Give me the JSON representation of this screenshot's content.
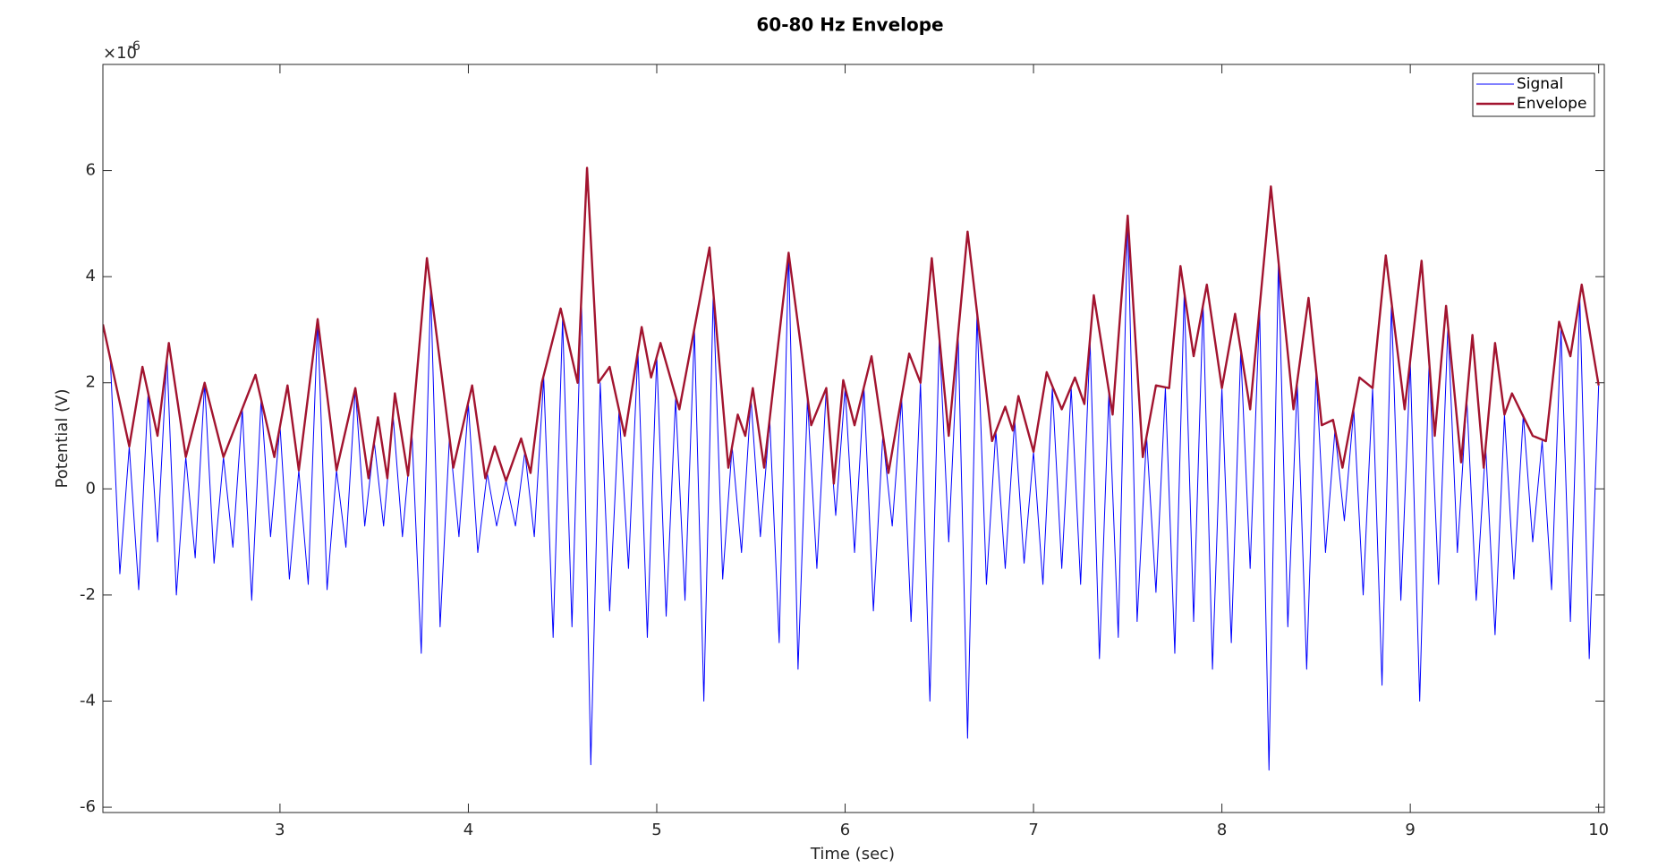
{
  "chart_data": {
    "type": "line",
    "title": "60-80 Hz Envelope",
    "x_label": "Time (sec)",
    "y_label": "Potential (V)",
    "y_multiplier": {
      "base": "×10",
      "exponent": "-6"
    },
    "xlim": [
      2.06,
      10.03
    ],
    "ylim": [
      -6.1,
      8
    ],
    "xticks": [
      3,
      4,
      5,
      6,
      7,
      8,
      9,
      10
    ],
    "yticks": [
      -6,
      -4,
      -2,
      0,
      2,
      4,
      6
    ],
    "legend": "northeast",
    "box": true,
    "series": [
      {
        "name": "Signal",
        "color": "#0000ff",
        "width": 1,
        "x": [
          2.1,
          2.15,
          2.2,
          2.25,
          2.3,
          2.35,
          2.4,
          2.45,
          2.5,
          2.55,
          2.6,
          2.65,
          2.7,
          2.75,
          2.8,
          2.85,
          2.9,
          2.95,
          3,
          3.05,
          3.1,
          3.15,
          3.2,
          3.25,
          3.3,
          3.35,
          3.4,
          3.45,
          3.5,
          3.55,
          3.6,
          3.65,
          3.7,
          3.75,
          3.8,
          3.85,
          3.9,
          3.95,
          4,
          4.05,
          4.1,
          4.15,
          4.2,
          4.25,
          4.3,
          4.35,
          4.4,
          4.45,
          4.5,
          4.55,
          4.6,
          4.65,
          4.7,
          4.75,
          4.8,
          4.85,
          4.9,
          4.95,
          5,
          5.05,
          5.1,
          5.15,
          5.2,
          5.25,
          5.3,
          5.35,
          5.4,
          5.45,
          5.5,
          5.55,
          5.6,
          5.65,
          5.7,
          5.75,
          5.8,
          5.85,
          5.9,
          5.95,
          6,
          6.05,
          6.1,
          6.15,
          6.2,
          6.25,
          6.3,
          6.35,
          6.4,
          6.45,
          6.5,
          6.55,
          6.6,
          6.65,
          6.7,
          6.75,
          6.8,
          6.85,
          6.9,
          6.95,
          7,
          7.05,
          7.1,
          7.15,
          7.2,
          7.25,
          7.3,
          7.35,
          7.4,
          7.45,
          7.5,
          7.55,
          7.6,
          7.65,
          7.7,
          7.75,
          7.8,
          7.85,
          7.9,
          7.95,
          8,
          8.05,
          8.1,
          8.15,
          8.2,
          8.25,
          8.3,
          8.35,
          8.4,
          8.45,
          8.5,
          8.55,
          8.6,
          8.65,
          8.7,
          8.75,
          8.8,
          8.85,
          8.9,
          8.95,
          9,
          9.05,
          9.1,
          9.15,
          9.2,
          9.25,
          9.3,
          9.35,
          9.4,
          9.45,
          9.5,
          9.55,
          9.6,
          9.65,
          9.7,
          9.75,
          9.8,
          9.85,
          9.9,
          9.95,
          10
        ],
        "values": [
          2.4,
          -1.6,
          0.8,
          -1.9,
          1.8,
          -1.0,
          2.5,
          -2.0,
          0.6,
          -1.3,
          2.0,
          -1.4,
          0.6,
          -1.1,
          1.5,
          -2.1,
          1.7,
          -0.9,
          1.2,
          -1.7,
          0.35,
          -1.8,
          3.2,
          -1.9,
          0.35,
          -1.1,
          1.9,
          -0.7,
          0.9,
          -0.7,
          1.4,
          -0.9,
          1.1,
          -3.1,
          3.8,
          -2.6,
          1.0,
          -0.9,
          1.6,
          -1.2,
          0.3,
          -0.7,
          0.15,
          -0.7,
          0.7,
          -0.9,
          2.1,
          -2.8,
          3.2,
          -2.6,
          3.6,
          -5.2,
          2.0,
          -2.3,
          1.5,
          -1.5,
          2.6,
          -2.8,
          2.5,
          -2.4,
          1.7,
          -2.1,
          3.0,
          -4.0,
          3.7,
          -1.7,
          0.8,
          -1.2,
          1.7,
          -0.9,
          1.3,
          -2.9,
          4.45,
          -3.4,
          1.7,
          -1.5,
          1.9,
          -0.5,
          1.9,
          -1.2,
          1.9,
          -2.3,
          1.0,
          -0.7,
          1.7,
          -2.5,
          2.0,
          -4.0,
          2.9,
          -1.0,
          2.9,
          -4.7,
          3.3,
          -1.8,
          1.1,
          -1.5,
          1.3,
          -1.4,
          0.7,
          -1.8,
          1.9,
          -1.5,
          1.9,
          -1.8,
          2.8,
          -3.2,
          1.8,
          -2.8,
          5.15,
          -2.5,
          1.0,
          -1.95,
          1.9,
          -3.1,
          3.7,
          -2.5,
          3.5,
          -3.4,
          1.9,
          -2.9,
          2.6,
          -1.5,
          3.4,
          -5.3,
          4.3,
          -2.6,
          2.0,
          -3.4,
          2.2,
          -1.2,
          1.1,
          -0.6,
          1.5,
          -2.0,
          1.9,
          -3.7,
          3.5,
          -2.1,
          2.4,
          -4.0,
          2.4,
          -1.8,
          3.1,
          -1.2,
          1.7,
          -2.1,
          0.8,
          -2.75,
          1.4,
          -1.7,
          1.4,
          -1.0,
          0.9,
          -1.9,
          3.0,
          -2.5,
          3.6,
          -3.2,
          1.95
        ]
      },
      {
        "name": "Envelope",
        "color": "#a2142f",
        "width": 2.4,
        "x": [
          2.06,
          2.2,
          2.27,
          2.35,
          2.41,
          2.5,
          2.6,
          2.7,
          2.87,
          2.97,
          3.04,
          3.1,
          3.2,
          3.3,
          3.4,
          3.47,
          3.52,
          3.57,
          3.61,
          3.68,
          3.78,
          3.92,
          4.02,
          4.09,
          4.14,
          4.2,
          4.28,
          4.33,
          4.39,
          4.49,
          4.58,
          4.63,
          4.69,
          4.75,
          4.83,
          4.92,
          4.97,
          5.02,
          5.12,
          5.28,
          5.38,
          5.43,
          5.47,
          5.51,
          5.57,
          5.7,
          5.82,
          5.9,
          5.94,
          5.99,
          6.05,
          6.14,
          6.23,
          6.34,
          6.4,
          6.46,
          6.55,
          6.65,
          6.78,
          6.85,
          6.89,
          6.92,
          7,
          7.07,
          7.15,
          7.22,
          7.27,
          7.32,
          7.42,
          7.5,
          7.58,
          7.65,
          7.72,
          7.78,
          7.85,
          7.92,
          8,
          8.07,
          8.15,
          8.26,
          8.38,
          8.46,
          8.53,
          8.59,
          8.64,
          8.73,
          8.8,
          8.87,
          8.97,
          9.06,
          9.13,
          9.19,
          9.27,
          9.33,
          9.39,
          9.45,
          9.5,
          9.54,
          9.65,
          9.72,
          9.79,
          9.85,
          9.91,
          10
        ],
        "values": [
          3.1,
          0.8,
          2.3,
          1.0,
          2.75,
          0.6,
          2.0,
          0.6,
          2.15,
          0.6,
          1.95,
          0.35,
          3.2,
          0.35,
          1.9,
          0.2,
          1.35,
          0.2,
          1.8,
          0.25,
          4.35,
          0.4,
          1.95,
          0.2,
          0.8,
          0.15,
          0.95,
          0.3,
          2.0,
          3.4,
          2.0,
          6.05,
          2.0,
          2.3,
          1.0,
          3.05,
          2.1,
          2.75,
          1.5,
          4.55,
          0.4,
          1.4,
          1.0,
          1.9,
          0.4,
          4.45,
          1.2,
          1.9,
          0.1,
          2.05,
          1.2,
          2.5,
          0.3,
          2.55,
          2.0,
          4.35,
          1.0,
          4.85,
          0.9,
          1.55,
          1.1,
          1.75,
          0.7,
          2.2,
          1.5,
          2.1,
          1.6,
          3.65,
          1.4,
          5.15,
          0.6,
          1.95,
          1.9,
          4.2,
          2.5,
          3.85,
          1.9,
          3.3,
          1.5,
          5.7,
          1.5,
          3.6,
          1.2,
          1.3,
          0.4,
          2.1,
          1.9,
          4.4,
          1.5,
          4.3,
          1.0,
          3.45,
          0.5,
          2.9,
          0.4,
          2.75,
          1.4,
          1.8,
          1.0,
          0.9,
          3.15,
          2.5,
          3.85,
          1.95
        ]
      }
    ]
  }
}
